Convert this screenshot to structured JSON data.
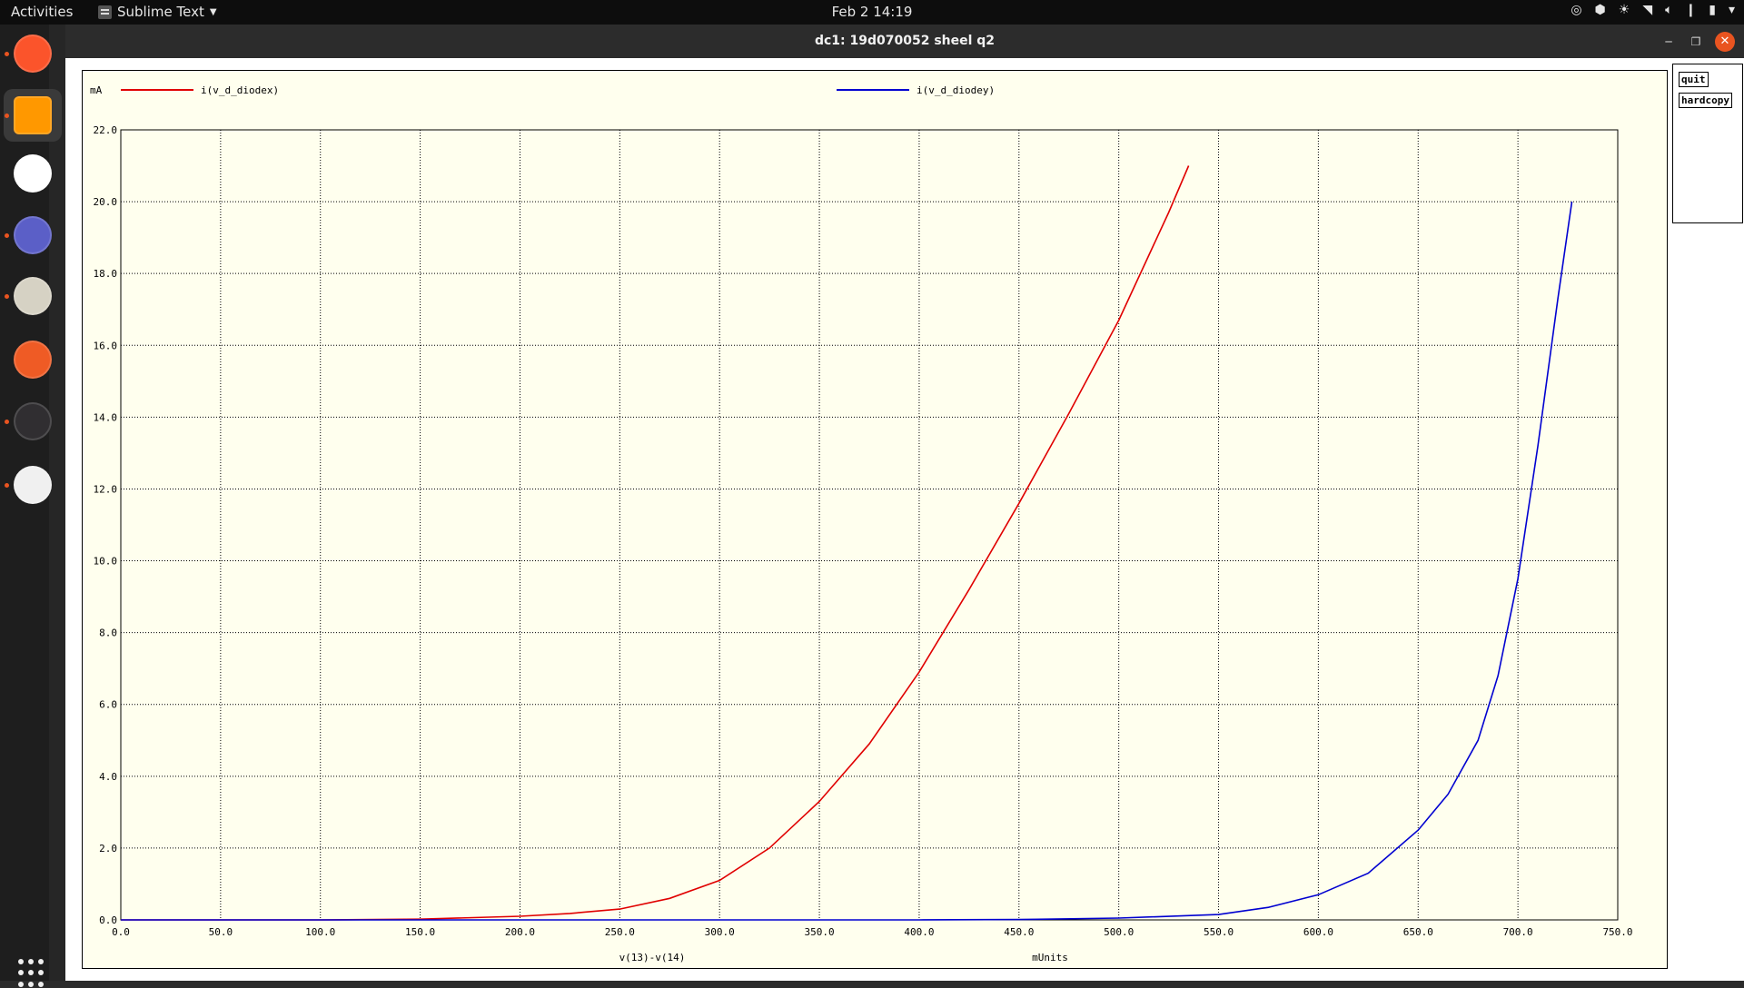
{
  "topbar": {
    "activities": "Activities",
    "app_name": "Sublime Text",
    "clock": "Feb 2  14:19"
  },
  "window": {
    "title": "dc1: 19d070052 sheel q2",
    "buttons": {
      "quit": "quit",
      "hardcopy": "hardcopy"
    }
  },
  "dock": {
    "items": [
      {
        "name": "brave-browser-icon",
        "color": "#fb542b",
        "running": true
      },
      {
        "name": "sublime-text-icon",
        "color": "#ff9800",
        "running": true,
        "active": true
      },
      {
        "name": "slack-icon",
        "color": "#ffffff",
        "running": false
      },
      {
        "name": "teams-icon",
        "color": "#5b5fc7",
        "running": true
      },
      {
        "name": "files-icon",
        "color": "#d6d2c4",
        "running": true
      },
      {
        "name": "postman-icon",
        "color": "#ef5b25",
        "running": false
      },
      {
        "name": "obs-icon",
        "color": "#302e31",
        "running": true
      },
      {
        "name": "document-viewer-icon",
        "color": "#f0f0f0",
        "running": true
      }
    ]
  },
  "chart_data": {
    "type": "line",
    "yunit": "mA",
    "xlabel": "v(13)-v(14)",
    "xunit": "mUnits",
    "xlim": [
      0,
      750
    ],
    "ylim": [
      0,
      22
    ],
    "xticks": [
      "0.0",
      "50.0",
      "100.0",
      "150.0",
      "200.0",
      "250.0",
      "300.0",
      "350.0",
      "400.0",
      "450.0",
      "500.0",
      "550.0",
      "600.0",
      "650.0",
      "700.0",
      "750.0"
    ],
    "yticks": [
      "0.0",
      "2.0",
      "4.0",
      "6.0",
      "8.0",
      "10.0",
      "12.0",
      "14.0",
      "16.0",
      "18.0",
      "20.0",
      "22.0"
    ],
    "grid": true,
    "series": [
      {
        "name": "i(v_d_diodex)",
        "color": "#e00000",
        "x": [
          0,
          100,
          150,
          200,
          225,
          250,
          275,
          300,
          325,
          350,
          375,
          400,
          425,
          450,
          475,
          500,
          525,
          535
        ],
        "y": [
          0,
          0.0,
          0.02,
          0.1,
          0.18,
          0.3,
          0.6,
          1.1,
          2.0,
          3.3,
          4.9,
          6.9,
          9.2,
          11.6,
          14.1,
          16.7,
          19.7,
          21.0
        ]
      },
      {
        "name": "i(v_d_diodey)",
        "color": "#0000d0",
        "x": [
          0,
          400,
          450,
          500,
          550,
          575,
          600,
          625,
          650,
          665,
          680,
          690,
          700,
          710,
          720,
          727
        ],
        "y": [
          0,
          0.0,
          0.01,
          0.05,
          0.15,
          0.35,
          0.7,
          1.3,
          2.5,
          3.5,
          5.0,
          6.8,
          9.5,
          13.2,
          17.3,
          20.0
        ]
      }
    ]
  }
}
